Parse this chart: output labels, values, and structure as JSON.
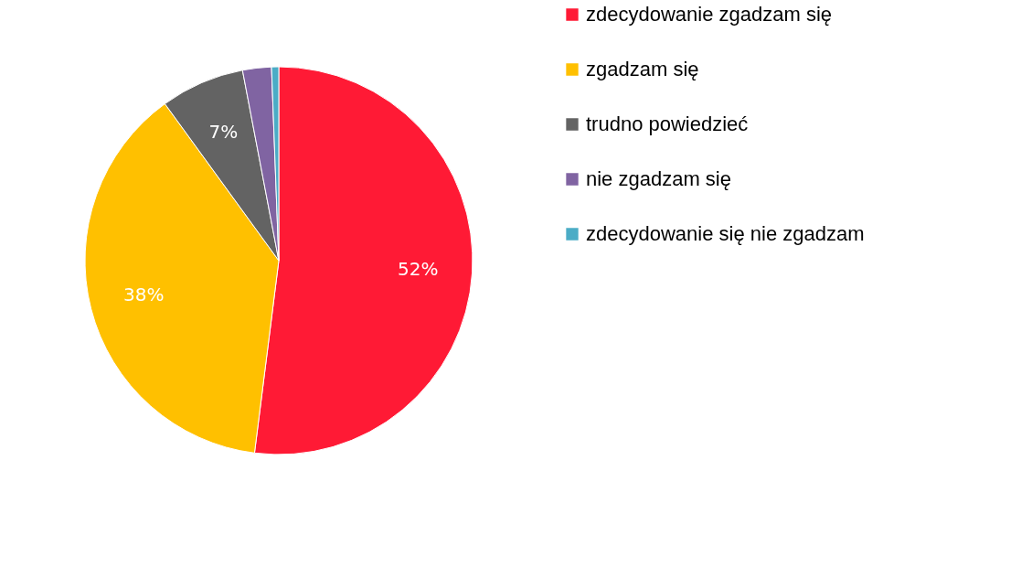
{
  "chart_data": {
    "type": "pie",
    "categories": [
      "zdecydowanie zgadzam się",
      "zgadzam się",
      "trudno powiedzieć",
      "nie zgadzam się",
      "zdecydowanie się nie zgadzam"
    ],
    "values": [
      52,
      38,
      7,
      2.4,
      0.6
    ],
    "colors": [
      "#ff1a35",
      "#ffc000",
      "#636363",
      "#8064a2",
      "#4bacc6"
    ],
    "value_labels": [
      "52%",
      "38%",
      "7%",
      null,
      null
    ],
    "legend": "right"
  }
}
